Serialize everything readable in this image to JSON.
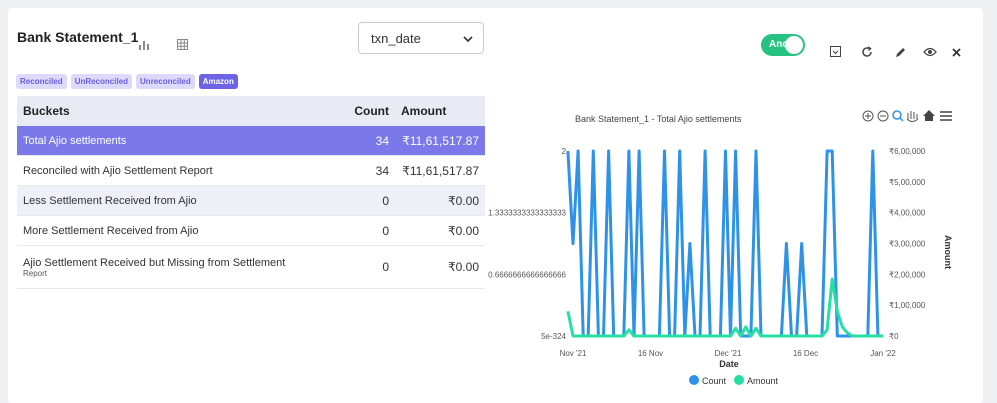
{
  "header": {
    "title": "Bank Statement_1",
    "select_value": "txn_date",
    "toggle_label": "And"
  },
  "tags": [
    {
      "label": "Reconciled",
      "active": false
    },
    {
      "label": "UnReconciled",
      "active": false
    },
    {
      "label": "Unreconciled",
      "active": false
    },
    {
      "label": "Amazon",
      "active": true
    }
  ],
  "table": {
    "headers": [
      "Buckets",
      "Count",
      "Amount"
    ],
    "rows": [
      {
        "bucket": "Total Ajio settlements",
        "count": "34",
        "amount": "₹11,61,517.87",
        "sub": ""
      },
      {
        "bucket": "Reconciled with Ajio Settlement Report",
        "count": "34",
        "amount": "₹11,61,517.87",
        "sub": ""
      },
      {
        "bucket": "Less Settlement Received from Ajio",
        "count": "0",
        "amount": "₹0.00",
        "sub": ""
      },
      {
        "bucket": "More Settlement Received from Ajio",
        "count": "0",
        "amount": "₹0.00",
        "sub": ""
      },
      {
        "bucket": "Ajio Settlement Received but Missing from Settlement",
        "count": "0",
        "amount": "₹0.00",
        "sub": "Report"
      }
    ]
  },
  "chart_data": {
    "type": "line",
    "title": "Bank Statement_1 - Total Ajio settlements",
    "xlabel": "Date",
    "ylabel_right": "Amount",
    "x_ticks": [
      "Nov '21",
      "16 Nov",
      "Dec '21",
      "16 Dec",
      "Jan '22"
    ],
    "y_left_ticks": [
      "2",
      "1.3333333333333333",
      "0.6666666666666666",
      "5e-324"
    ],
    "y_right_ticks": [
      "₹6,00,000",
      "₹5,00,000",
      "₹4,00,000",
      "₹3,00,000",
      "₹2,00,000",
      "₹1,00,000",
      "₹0"
    ],
    "x_range": [
      "2021-11-01",
      "2022-01-01"
    ],
    "ylim_left": [
      0,
      2
    ],
    "ylim_right": [
      0,
      600000
    ],
    "legend_position": "bottom",
    "series": [
      {
        "name": "Count",
        "color": "#2e93e8",
        "axis": "left",
        "x": [
          "2021-10-31",
          "2021-11-01",
          "2021-11-02",
          "2021-11-03",
          "2021-11-04",
          "2021-11-05",
          "2021-11-06",
          "2021-11-07",
          "2021-11-08",
          "2021-11-09",
          "2021-11-10",
          "2021-11-11",
          "2021-11-12",
          "2021-11-13",
          "2021-11-14",
          "2021-11-15",
          "2021-11-16",
          "2021-11-17",
          "2021-11-18",
          "2021-11-19",
          "2021-11-20",
          "2021-11-21",
          "2021-11-22",
          "2021-11-23",
          "2021-11-24",
          "2021-11-25",
          "2021-11-26",
          "2021-11-27",
          "2021-11-28",
          "2021-11-29",
          "2021-11-30",
          "2021-12-01",
          "2021-12-02",
          "2021-12-03",
          "2021-12-04",
          "2021-12-05",
          "2021-12-06",
          "2021-12-07",
          "2021-12-08",
          "2021-12-09",
          "2021-12-10",
          "2021-12-11",
          "2021-12-12",
          "2021-12-13",
          "2021-12-14",
          "2021-12-15",
          "2021-12-16",
          "2021-12-17",
          "2021-12-18",
          "2021-12-19",
          "2021-12-20",
          "2021-12-21",
          "2021-12-22",
          "2021-12-23",
          "2021-12-24",
          "2021-12-25",
          "2021-12-26",
          "2021-12-27",
          "2021-12-28",
          "2021-12-29",
          "2021-12-30",
          "2021-12-31",
          "2022-01-01"
        ],
        "values": [
          2,
          1,
          2,
          0,
          0,
          2,
          0,
          0,
          2,
          0,
          0,
          0,
          2,
          0,
          2,
          0,
          0,
          0,
          0,
          2,
          0,
          0,
          2,
          0,
          1,
          0,
          0,
          2,
          0,
          0,
          0,
          2,
          0,
          2,
          0,
          0,
          0,
          2,
          0,
          0,
          0,
          0,
          0,
          1,
          0,
          0,
          1,
          0,
          0,
          0,
          0,
          2,
          2,
          0,
          0,
          0,
          0,
          0,
          0,
          0,
          2,
          0,
          0
        ]
      },
      {
        "name": "Amount",
        "color": "#26e0a3",
        "axis": "right",
        "x": [
          "2021-10-31",
          "2021-11-01",
          "2021-11-02",
          "2021-11-03",
          "2021-11-04",
          "2021-11-05",
          "2021-11-06",
          "2021-11-07",
          "2021-11-08",
          "2021-11-09",
          "2021-11-10",
          "2021-11-11",
          "2021-11-12",
          "2021-11-13",
          "2021-11-14",
          "2021-11-15",
          "2021-11-16",
          "2021-11-17",
          "2021-11-18",
          "2021-11-19",
          "2021-11-20",
          "2021-11-21",
          "2021-11-22",
          "2021-11-23",
          "2021-11-24",
          "2021-11-25",
          "2021-11-26",
          "2021-11-27",
          "2021-11-28",
          "2021-11-29",
          "2021-11-30",
          "2021-12-01",
          "2021-12-02",
          "2021-12-03",
          "2021-12-04",
          "2021-12-05",
          "2021-12-06",
          "2021-12-07",
          "2021-12-08",
          "2021-12-09",
          "2021-12-10",
          "2021-12-11",
          "2021-12-12",
          "2021-12-13",
          "2021-12-14",
          "2021-12-15",
          "2021-12-16",
          "2021-12-17",
          "2021-12-18",
          "2021-12-19",
          "2021-12-20",
          "2021-12-21",
          "2021-12-22",
          "2021-12-23",
          "2021-12-24",
          "2021-12-25",
          "2021-12-26",
          "2021-12-27",
          "2021-12-28",
          "2021-12-29",
          "2021-12-30",
          "2021-12-31",
          "2022-01-01"
        ],
        "values": [
          80000,
          0,
          0,
          0,
          0,
          0,
          0,
          0,
          0,
          0,
          0,
          0,
          20000,
          0,
          0,
          0,
          0,
          0,
          0,
          0,
          0,
          0,
          0,
          0,
          0,
          0,
          0,
          0,
          0,
          0,
          0,
          0,
          0,
          25000,
          0,
          30000,
          0,
          25000,
          0,
          0,
          0,
          0,
          0,
          0,
          0,
          0,
          0,
          0,
          0,
          0,
          0,
          20000,
          185000,
          80000,
          30000,
          10000,
          0,
          0,
          0,
          0,
          0,
          0,
          0
        ]
      }
    ]
  }
}
